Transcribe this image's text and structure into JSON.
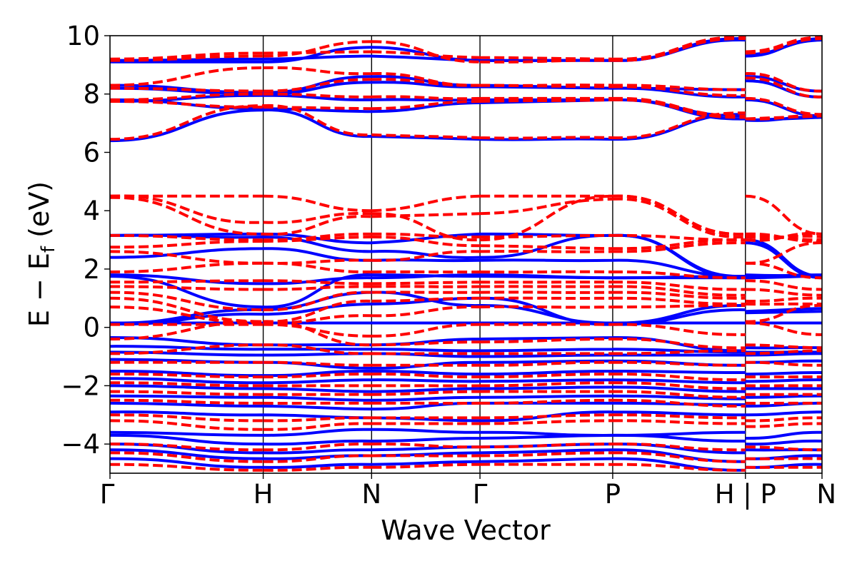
{
  "chart_data": {
    "type": "line",
    "title": "",
    "xlabel": "Wave Vector",
    "ylabel": "E − E",
    "ylabel_subscript": "f",
    "ylabel_unit": " (eV)",
    "ylim": [
      -5,
      10
    ],
    "yticks": [
      -4,
      -2,
      0,
      2,
      4,
      6,
      8,
      10
    ],
    "ytick_labels": [
      "−4",
      "−2",
      "0",
      "2",
      "4",
      "6",
      "8",
      "10"
    ],
    "k_points": [
      {
        "label": "Γ",
        "pos": 0.0
      },
      {
        "label": "H",
        "pos": 0.2487
      },
      {
        "label": "N",
        "pos": 0.4246
      },
      {
        "label": "Γ",
        "pos": 0.6005
      },
      {
        "label": "P",
        "pos": 0.8159
      },
      {
        "label": "H | P",
        "pos": 1.0313
      },
      {
        "label": "N",
        "pos": 1.1556
      }
    ],
    "grid": false,
    "legend": "none",
    "colors": {
      "blue_series": "#0000ff",
      "red_series": "#ff0000"
    },
    "series": [
      {
        "style": "solid",
        "color": "#0000ff",
        "bands": [
          [
            9.15,
            9.2,
            9.3,
            9.15,
            9.15,
            9.9,
            9.3,
            9.9,
            9.6
          ],
          [
            9.1,
            9.1,
            9.6,
            9.15,
            9.15,
            9.85,
            9.35,
            9.85,
            9.55
          ],
          [
            8.3,
            8.05,
            8.6,
            8.3,
            8.2,
            8.15,
            8.6,
            8.1,
            8.5
          ],
          [
            8.2,
            8.0,
            8.4,
            8.25,
            8.2,
            7.9,
            8.45,
            7.9,
            8.3
          ],
          [
            7.75,
            7.95,
            7.8,
            7.8,
            7.8,
            7.25,
            7.8,
            7.25,
            7.7
          ],
          [
            7.8,
            7.5,
            7.4,
            7.7,
            7.8,
            7.15,
            7.1,
            7.2,
            7.45
          ],
          [
            6.4,
            7.45,
            6.55,
            6.45,
            6.45,
            7.3,
            7.1,
            7.2,
            6.55
          ],
          [
            3.15,
            3.2,
            2.9,
            3.2,
            3.15,
            1.75,
            3.0,
            1.75,
            2.9
          ],
          [
            3.15,
            3.1,
            2.6,
            2.4,
            3.15,
            1.7,
            2.9,
            1.7,
            2.65
          ],
          [
            2.4,
            2.7,
            2.3,
            2.3,
            2.3,
            1.75,
            1.8,
            1.75,
            2.5
          ],
          [
            1.8,
            1.5,
            1.7,
            1.8,
            1.7,
            1.75,
            1.75,
            1.8,
            1.75
          ],
          [
            1.75,
            0.7,
            1.8,
            1.75,
            1.7,
            1.7,
            1.7,
            1.75,
            1.65
          ],
          [
            0.15,
            0.6,
            1.2,
            0.75,
            0.15,
            0.75,
            0.55,
            0.65,
            1.1
          ],
          [
            0.12,
            0.45,
            0.8,
            1.0,
            0.1,
            0.6,
            0.5,
            0.55,
            0.7
          ],
          [
            0.15,
            0.15,
            0.15,
            0.15,
            0.15,
            0.15,
            0.15,
            0.15,
            0.15
          ],
          [
            -0.35,
            -0.6,
            -0.6,
            -0.4,
            -0.35,
            -0.8,
            -0.7,
            -0.7,
            -0.5
          ],
          [
            -0.65,
            -0.75,
            -0.75,
            -0.8,
            -0.75,
            -0.85,
            -0.85,
            -0.85,
            -0.75
          ],
          [
            -0.85,
            -0.95,
            -0.9,
            -1.0,
            -0.95,
            -0.95,
            -0.95,
            -0.9,
            -0.95
          ],
          [
            -1.1,
            -1.2,
            -1.4,
            -1.2,
            -1.15,
            -1.3,
            -1.2,
            -1.15,
            -1.25
          ],
          [
            -1.5,
            -1.65,
            -1.5,
            -1.6,
            -1.5,
            -1.55,
            -1.6,
            -1.55,
            -1.45
          ],
          [
            -1.75,
            -1.9,
            -1.8,
            -1.85,
            -1.8,
            -1.9,
            -1.85,
            -1.8,
            -1.7
          ],
          [
            -2.0,
            -2.1,
            -2.2,
            -2.1,
            -2.05,
            -2.2,
            -2.1,
            -2.1,
            -2.0
          ],
          [
            -2.35,
            -2.4,
            -2.5,
            -2.4,
            -2.35,
            -2.45,
            -2.4,
            -2.35,
            -2.3
          ],
          [
            -2.6,
            -2.7,
            -2.8,
            -2.6,
            -2.6,
            -2.65,
            -2.7,
            -2.6,
            -2.55
          ],
          [
            -2.9,
            -3.0,
            -3.1,
            -3.2,
            -2.9,
            -3.0,
            -3.0,
            -2.9,
            -2.85
          ],
          [
            -3.6,
            -3.7,
            -3.5,
            -3.6,
            -3.7,
            -3.6,
            -3.8,
            -3.6,
            -3.55
          ],
          [
            -3.7,
            -4.0,
            -3.9,
            -3.8,
            -3.7,
            -3.9,
            -4.0,
            -3.9,
            -3.8
          ],
          [
            -4.0,
            -4.3,
            -4.2,
            -4.1,
            -4.0,
            -4.3,
            -4.2,
            -4.2,
            -4.0
          ],
          [
            -4.2,
            -4.5,
            -4.4,
            -4.3,
            -4.2,
            -4.6,
            -4.5,
            -4.4,
            -4.3
          ],
          [
            -4.5,
            -4.8,
            -4.7,
            -4.6,
            -4.5,
            -4.9,
            -4.8,
            -4.7,
            -4.6
          ]
        ]
      },
      {
        "style": "dashed",
        "color": "#ff0000",
        "bands": [
          [
            9.2,
            9.4,
            9.45,
            9.25,
            9.2,
            9.95,
            9.45,
            9.95,
            9.8
          ],
          [
            9.15,
            9.3,
            9.8,
            9.1,
            9.15,
            9.9,
            9.4,
            9.9,
            9.7
          ],
          [
            8.3,
            8.9,
            8.7,
            8.3,
            8.3,
            8.15,
            8.7,
            8.1,
            8.6
          ],
          [
            8.2,
            8.1,
            8.5,
            8.3,
            8.25,
            7.95,
            8.55,
            7.9,
            8.4
          ],
          [
            7.8,
            8.0,
            7.9,
            7.85,
            7.85,
            7.25,
            7.85,
            7.3,
            7.8
          ],
          [
            7.75,
            7.55,
            7.5,
            7.75,
            7.8,
            7.2,
            7.15,
            7.25,
            7.5
          ],
          [
            6.45,
            7.6,
            6.6,
            6.5,
            6.5,
            7.35,
            7.15,
            7.25,
            6.6
          ],
          [
            4.5,
            4.5,
            4.0,
            4.5,
            4.5,
            3.2,
            4.5,
            3.2,
            4.0
          ],
          [
            4.5,
            3.6,
            3.9,
            3.0,
            4.5,
            3.2,
            3.0,
            3.2,
            3.85
          ],
          [
            4.45,
            3.2,
            3.8,
            3.9,
            4.4,
            3.1,
            3.1,
            3.1,
            3.2
          ],
          [
            3.15,
            3.0,
            3.2,
            3.1,
            3.15,
            3.0,
            3.15,
            3.0,
            3.1
          ],
          [
            2.75,
            2.95,
            3.1,
            2.8,
            2.7,
            3.0,
            3.2,
            2.95,
            3.0
          ],
          [
            2.6,
            2.2,
            2.3,
            2.6,
            2.6,
            2.9,
            2.2,
            2.9,
            2.3
          ],
          [
            1.9,
            2.2,
            1.9,
            1.9,
            1.9,
            1.7,
            2.2,
            1.7,
            2.2
          ],
          [
            1.55,
            1.6,
            1.5,
            1.55,
            1.55,
            1.3,
            1.6,
            1.3,
            1.5
          ],
          [
            1.4,
            1.3,
            1.4,
            1.4,
            1.4,
            1.1,
            1.3,
            1.1,
            1.35
          ],
          [
            1.2,
            0.6,
            1.2,
            1.2,
            1.2,
            1.0,
            0.9,
            1.0,
            1.2
          ],
          [
            1.0,
            0.2,
            0.9,
            1.0,
            1.0,
            0.8,
            0.8,
            0.8,
            1.0
          ],
          [
            0.7,
            0.15,
            0.4,
            0.7,
            0.7,
            0.75,
            0.2,
            0.75,
            0.6
          ],
          [
            0.1,
            0.1,
            -0.3,
            0.1,
            0.1,
            -0.25,
            0.15,
            -0.25,
            -0.3
          ],
          [
            -0.4,
            0.2,
            -0.6,
            -0.5,
            -0.4,
            -0.7,
            -0.6,
            -0.7,
            -0.5
          ],
          [
            -0.9,
            -0.6,
            -0.9,
            -0.9,
            -0.9,
            -0.8,
            -0.9,
            -0.8,
            -0.9
          ],
          [
            -1.2,
            -1.2,
            -1.3,
            -1.3,
            -1.2,
            -1.3,
            -1.2,
            -1.3,
            -1.2
          ],
          [
            -1.6,
            -1.7,
            -1.6,
            -1.7,
            -1.6,
            -1.8,
            -1.7,
            -1.7,
            -1.6
          ],
          [
            -1.9,
            -2.0,
            -2.0,
            -2.0,
            -1.9,
            -2.1,
            -2.0,
            -2.0,
            -1.9
          ],
          [
            -2.2,
            -2.3,
            -2.3,
            -2.2,
            -2.2,
            -2.4,
            -2.3,
            -2.3,
            -2.2
          ],
          [
            -2.5,
            -2.6,
            -2.6,
            -2.6,
            -2.5,
            -2.7,
            -2.6,
            -2.6,
            -2.5
          ],
          [
            -3.0,
            -3.2,
            -3.1,
            -3.1,
            -3.0,
            -3.1,
            -3.2,
            -3.1,
            -3.0
          ],
          [
            -3.2,
            -3.5,
            -3.3,
            -3.3,
            -3.2,
            -3.3,
            -3.4,
            -3.3,
            -3.2
          ],
          [
            -4.0,
            -4.2,
            -4.0,
            -4.1,
            -4.0,
            -4.2,
            -4.1,
            -4.2,
            -4.0
          ],
          [
            -4.3,
            -4.6,
            -4.4,
            -4.4,
            -4.3,
            -4.6,
            -4.5,
            -4.5,
            -4.4
          ],
          [
            -4.7,
            -4.9,
            -4.8,
            -4.7,
            -4.7,
            -4.9,
            -4.8,
            -4.8,
            -4.7
          ]
        ]
      }
    ]
  }
}
